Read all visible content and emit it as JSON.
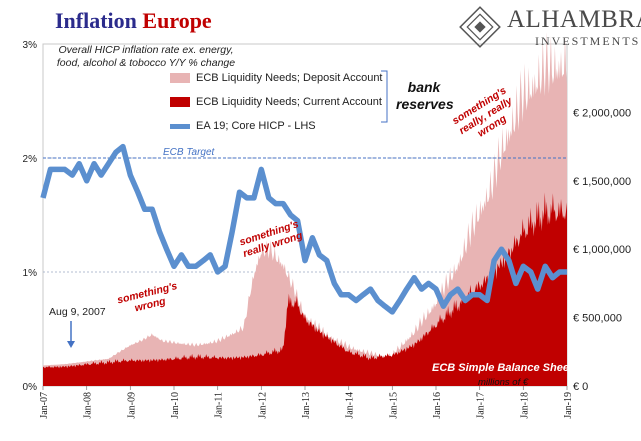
{
  "title": {
    "part1": "Inflation",
    "part2": "Europe"
  },
  "logo": {
    "name": "ALHAMBRA",
    "sub": "INVESTMENTS"
  },
  "chart_data": {
    "type": "area",
    "subtitle": "Overall HICP inflation rate ex. energy, food, alcohol & tobocco Y/Y % change",
    "x_ticks": [
      "Jan-07",
      "Jan-08",
      "Jan-09",
      "Jan-10",
      "Jan-11",
      "Jan-12",
      "Jan-13",
      "Jan-14",
      "Jan-15",
      "Jan-16",
      "Jan-17",
      "Jan-18",
      "Jan-19"
    ],
    "y_left": {
      "ticks": [
        "0%",
        "1%",
        "2%",
        "3%"
      ],
      "range": [
        0,
        3
      ]
    },
    "y_right": {
      "ticks": [
        "€ 0",
        "€ 500,000",
        "€ 1,000,000",
        "€ 1,500,000",
        "€ 2,000,000"
      ],
      "range": [
        0,
        2500000
      ],
      "unit": "millions of €"
    },
    "bank_reserves_label": "bank reserves",
    "series": [
      {
        "name": "ECB Liquidity Needs; Deposit Account",
        "axis": "right",
        "color": "#e8b4b4",
        "x": [
          2007.0,
          2007.5,
          2008.0,
          2008.5,
          2008.8,
          2009.0,
          2009.3,
          2009.5,
          2009.75,
          2010.0,
          2010.5,
          2011.0,
          2011.3,
          2011.6,
          2011.75,
          2011.85,
          2012.0,
          2012.2,
          2012.5,
          2012.7,
          2013.0,
          2013.5,
          2014.0,
          2014.5,
          2014.9,
          2015.0,
          2015.5,
          2016.0,
          2016.5,
          2017.0,
          2017.3,
          2017.5,
          2018.0,
          2018.5,
          2019.0
        ],
        "values": [
          150000,
          160000,
          180000,
          200000,
          260000,
          300000,
          340000,
          380000,
          330000,
          320000,
          300000,
          330000,
          380000,
          430000,
          700000,
          850000,
          1000000,
          1000000,
          900000,
          750000,
          520000,
          380000,
          290000,
          240000,
          220000,
          230000,
          400000,
          620000,
          900000,
          1300000,
          1500000,
          1750000,
          2150000,
          2350000,
          2400000
        ]
      },
      {
        "name": "ECB Liquidity Needs; Current Account",
        "axis": "right",
        "color": "#c00000",
        "x": [
          2007.0,
          2007.5,
          2008.0,
          2008.5,
          2009.0,
          2009.5,
          2010.0,
          2010.5,
          2011.0,
          2011.5,
          2012.0,
          2012.5,
          2012.6,
          2012.8,
          2013.0,
          2013.5,
          2014.0,
          2014.5,
          2015.0,
          2015.5,
          2016.0,
          2016.5,
          2017.0,
          2017.5,
          2018.0,
          2018.5,
          2019.0
        ],
        "values": [
          140000,
          150000,
          160000,
          170000,
          190000,
          200000,
          200000,
          210000,
          210000,
          220000,
          230000,
          260000,
          600000,
          610000,
          500000,
          380000,
          250000,
          200000,
          230000,
          320000,
          450000,
          580000,
          750000,
          950000,
          1130000,
          1250000,
          1300000
        ]
      },
      {
        "name": "EA 19; Core HICP - LHS",
        "axis": "left",
        "color": "#5b8fcf",
        "x": [
          2007.0,
          2007.17,
          2007.33,
          2007.5,
          2007.67,
          2007.83,
          2008.0,
          2008.17,
          2008.33,
          2008.5,
          2008.67,
          2008.83,
          2009.0,
          2009.17,
          2009.33,
          2009.5,
          2009.67,
          2009.83,
          2010.0,
          2010.17,
          2010.33,
          2010.5,
          2010.67,
          2010.83,
          2011.0,
          2011.17,
          2011.33,
          2011.5,
          2011.67,
          2011.83,
          2012.0,
          2012.17,
          2012.33,
          2012.5,
          2012.67,
          2012.83,
          2013.0,
          2013.17,
          2013.33,
          2013.5,
          2013.67,
          2013.83,
          2014.0,
          2014.17,
          2014.33,
          2014.5,
          2014.67,
          2014.83,
          2015.0,
          2015.17,
          2015.33,
          2015.5,
          2015.67,
          2015.83,
          2016.0,
          2016.17,
          2016.33,
          2016.5,
          2016.67,
          2016.83,
          2017.0,
          2017.17,
          2017.33,
          2017.5,
          2017.67,
          2017.83,
          2018.0,
          2018.17,
          2018.33,
          2018.5,
          2018.67,
          2018.83,
          2019.0
        ],
        "values": [
          1.65,
          1.9,
          1.9,
          1.9,
          1.85,
          1.95,
          1.8,
          1.95,
          1.85,
          1.95,
          2.05,
          2.1,
          1.85,
          1.7,
          1.55,
          1.55,
          1.35,
          1.2,
          1.05,
          1.15,
          1.05,
          1.05,
          1.1,
          1.15,
          1.0,
          1.05,
          1.35,
          1.7,
          1.65,
          1.65,
          1.9,
          1.65,
          1.6,
          1.6,
          1.5,
          1.45,
          1.1,
          1.3,
          1.15,
          1.1,
          0.9,
          0.8,
          0.8,
          0.75,
          0.8,
          0.85,
          0.75,
          0.7,
          0.65,
          0.75,
          0.85,
          0.95,
          0.85,
          0.9,
          0.85,
          0.7,
          0.8,
          0.85,
          0.75,
          0.8,
          0.8,
          0.75,
          1.1,
          1.2,
          1.1,
          0.9,
          1.05,
          1.0,
          0.85,
          1.05,
          0.95,
          1.0,
          1.0
        ]
      }
    ],
    "reference_line": {
      "label": "ECB Target",
      "value": 2.0,
      "axis": "left"
    },
    "annotations": [
      {
        "text": "something's wrong",
        "lines": [
          "something's",
          "wrong"
        ]
      },
      {
        "text": "something's really wrong",
        "lines": [
          "something's",
          "really wrong"
        ]
      },
      {
        "text": "something's really, really wrong",
        "lines": [
          "something's",
          "really, really",
          "wrong"
        ]
      },
      {
        "text": "Aug 9, 2007"
      },
      {
        "text": "ECB Simple Balance Sheet"
      },
      {
        "text": "millions of €"
      }
    ]
  }
}
